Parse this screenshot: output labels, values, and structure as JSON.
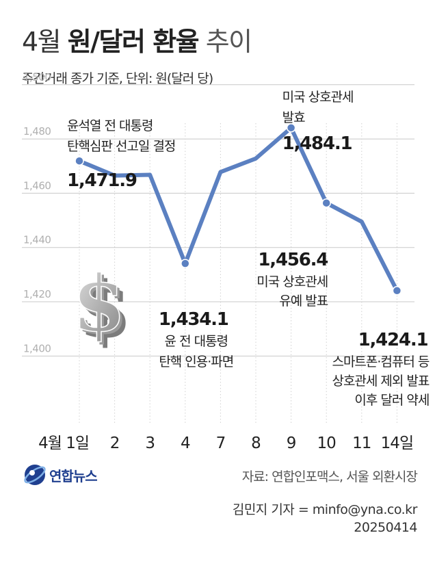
{
  "title": {
    "prefix": "4월 ",
    "bold": "원/달러 환율",
    "suffix": " 추이"
  },
  "subtitle": "주간거래 종가 기준, 단위: 원(달러 당)",
  "chart_data": {
    "type": "line",
    "x": [
      "4월1일",
      "2",
      "3",
      "4",
      "7",
      "8",
      "9",
      "10",
      "11",
      "14일"
    ],
    "x_tick_labels": [
      "4월 1일",
      "2",
      "3",
      "4",
      "7",
      "8",
      "9",
      "10",
      "11",
      "14일"
    ],
    "values": [
      1471.9,
      1466.5,
      1466.8,
      1434.1,
      1467.8,
      1472.8,
      1484.1,
      1456.4,
      1449.5,
      1424.1
    ],
    "ylim": [
      1390,
      1506
    ],
    "y_ticks": [
      "1,400",
      "1,420",
      "1,440",
      "1,460",
      "1,480",
      "1,500"
    ],
    "grid": true,
    "line_color": "#5b80c1",
    "annotations": [
      {
        "index": 0,
        "value_label": "1,471.9",
        "text": [
          "윤석열 전 대통령",
          "탄핵심판 선고일 결정"
        ]
      },
      {
        "index": 3,
        "value_label": "1,434.1",
        "text": [
          "윤 전 대통령",
          "탄핵 인용·파면"
        ]
      },
      {
        "index": 6,
        "value_label": "1,484.1",
        "text": [
          "미국 상호관세",
          "발효"
        ]
      },
      {
        "index": 7,
        "value_label": "1,456.4",
        "text": [
          "미국 상호관세",
          "유예 발표"
        ]
      },
      {
        "index": 9,
        "value_label": "1,424.1",
        "text": [
          "스마트폰·컴퓨터 등",
          "상호관세 제외 발표",
          "이후 달러 약세"
        ]
      }
    ]
  },
  "decor": {
    "dollar_icon": "dollar-sign-3d-icon"
  },
  "logo": {
    "text": "연합뉴스",
    "icon": "yonhap-logo-icon"
  },
  "source": "자료: 연합인포맥스, 서울 외환시장",
  "credit": {
    "author": "김민지 기자 = minfo@yna.co.kr",
    "date": "20250414"
  }
}
